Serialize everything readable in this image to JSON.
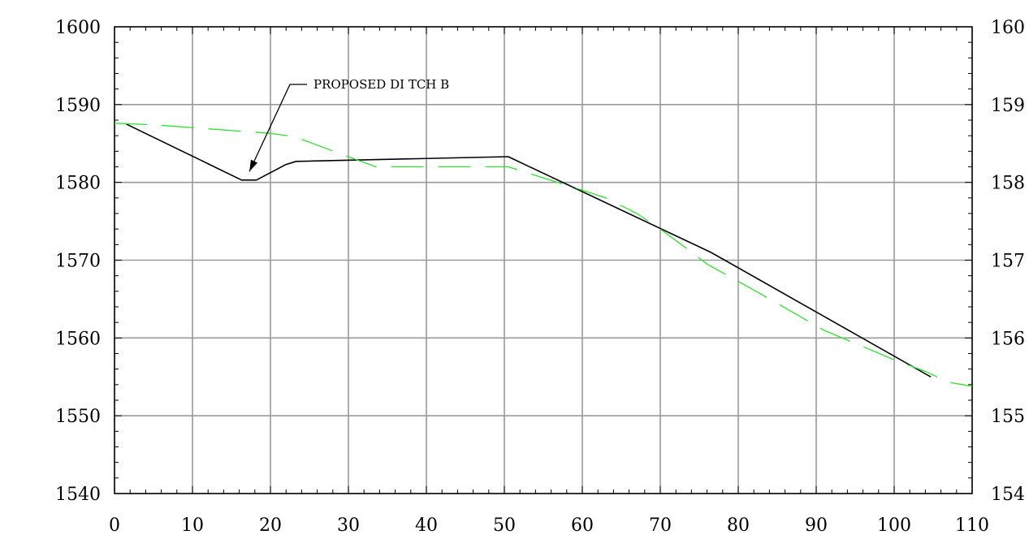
{
  "chart_data": {
    "type": "line",
    "title": "",
    "xlabel": "",
    "ylabel": "",
    "xlim": [
      0,
      110
    ],
    "ylim": [
      1540,
      1600
    ],
    "x_ticks": [
      "0",
      "10",
      "20",
      "30",
      "40",
      "50",
      "60",
      "70",
      "80",
      "90",
      "100",
      "110"
    ],
    "y_ticks_left": [
      "1540",
      "1550",
      "1560",
      "1570",
      "1580",
      "1590",
      "1600"
    ],
    "y_ticks_right": [
      "154",
      "155",
      "156",
      "157",
      "158",
      "159",
      "160"
    ],
    "grid": true,
    "series": [
      {
        "color": "#000000",
        "style": "solid",
        "points": [
          [
            1.5,
            1587.5
          ],
          [
            16.3,
            1580.3
          ],
          [
            18.2,
            1580.3
          ],
          [
            22.0,
            1582.3
          ],
          [
            23.3,
            1582.7
          ],
          [
            50.5,
            1583.3
          ],
          [
            76.5,
            1571.0
          ],
          [
            104.7,
            1555.0
          ]
        ]
      },
      {
        "color": "#2ee02e",
        "style": "dashed",
        "points": [
          [
            0,
            1587.6
          ],
          [
            5,
            1587.4
          ],
          [
            20,
            1586.3
          ],
          [
            23,
            1585.9
          ],
          [
            33.5,
            1582.0
          ],
          [
            50.5,
            1582.0
          ],
          [
            60,
            1579.0
          ],
          [
            63,
            1578.0
          ],
          [
            67,
            1576.0
          ],
          [
            70,
            1574.0
          ],
          [
            73,
            1571.8
          ],
          [
            76,
            1569.5
          ],
          [
            83,
            1565.6
          ],
          [
            91,
            1561.0
          ],
          [
            100,
            1557.2
          ],
          [
            104,
            1555.7
          ],
          [
            107,
            1554.3
          ],
          [
            110,
            1553.8
          ]
        ]
      }
    ],
    "annotations": [
      {
        "text": "PROPOSED DI TCH B",
        "arrow_to": [
          17.3,
          1581.4
        ]
      }
    ]
  }
}
